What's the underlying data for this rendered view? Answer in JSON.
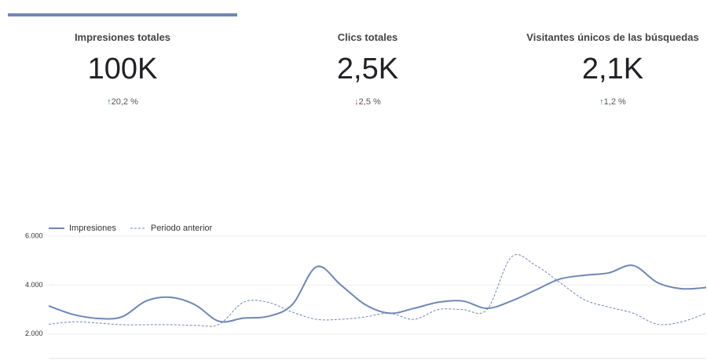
{
  "kpis": [
    {
      "title": "Impresiones totales",
      "value": "100K",
      "delta": "20,2 %",
      "direction": "up"
    },
    {
      "title": "Clics totales",
      "value": "2,5K",
      "delta": "2,5 %",
      "direction": "down"
    },
    {
      "title": "Visitantes únicos de las búsquedas",
      "value": "2,1K",
      "delta": "1,2 %",
      "direction": "up"
    }
  ],
  "chart_data": {
    "type": "line",
    "ylim": [
      1000,
      6000
    ],
    "yticks": [
      {
        "value": 2000,
        "label": "2.000"
      },
      {
        "value": 4000,
        "label": "4.000"
      },
      {
        "value": 6000,
        "label": "6.000"
      }
    ],
    "grid": true,
    "legend": "top-left",
    "series": [
      {
        "name": "Impresiones",
        "color": "#6f86b5",
        "style": "solid",
        "values": [
          3150,
          2800,
          2640,
          2700,
          3350,
          3500,
          3200,
          2520,
          2650,
          2720,
          3200,
          4750,
          4000,
          3200,
          2850,
          3050,
          3300,
          3350,
          3050,
          3350,
          3800,
          4250,
          4400,
          4500,
          4800,
          4100,
          3850,
          3900
        ]
      },
      {
        "name": "Periodo anterior",
        "color": "#6f86b5",
        "style": "dashed",
        "values": [
          2400,
          2500,
          2450,
          2380,
          2380,
          2380,
          2360,
          2400,
          3300,
          3300,
          2900,
          2600,
          2600,
          2700,
          2850,
          2600,
          3000,
          3000,
          3000,
          5150,
          4800,
          4100,
          3400,
          3100,
          2850,
          2400,
          2500,
          2850
        ]
      }
    ]
  }
}
